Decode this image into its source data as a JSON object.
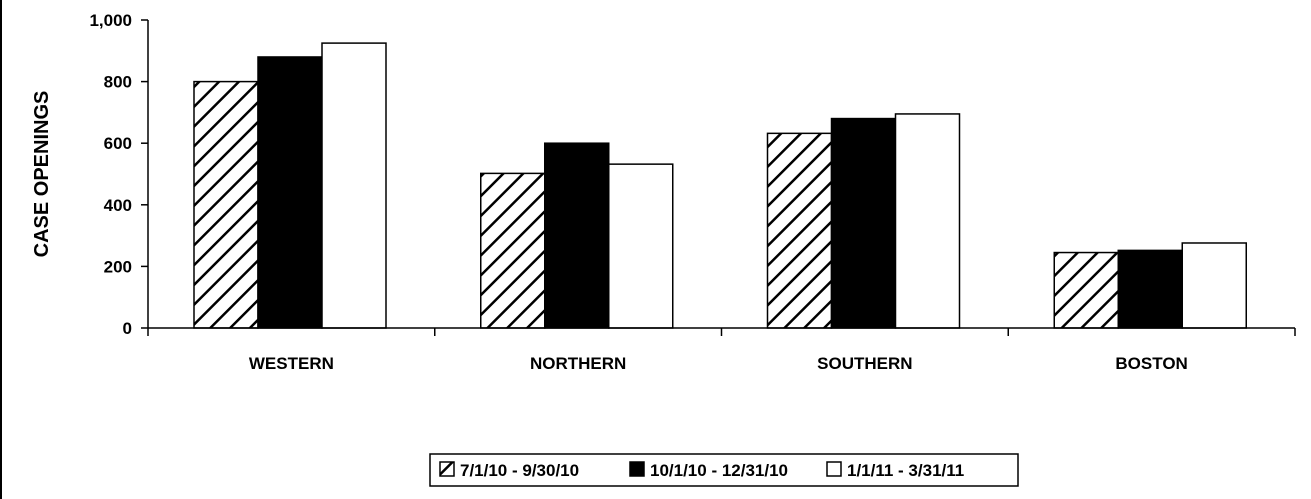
{
  "chart_data": {
    "type": "bar",
    "title": "",
    "xlabel": "",
    "ylabel": "CASE OPENINGS",
    "ylim": [
      0,
      1000
    ],
    "yticks": [
      0,
      200,
      400,
      600,
      800,
      1000
    ],
    "ytick_labels": [
      "0",
      "200",
      "400",
      "600",
      "800",
      "1,000"
    ],
    "categories": [
      "WESTERN",
      "NORTHERN",
      "SOUTHERN",
      "BOSTON"
    ],
    "series": [
      {
        "name": "7/1/10 - 9/30/10",
        "values": [
          800,
          502,
          632,
          245
        ],
        "fill": "hatch"
      },
      {
        "name": "10/1/10 - 12/31/10",
        "values": [
          880,
          600,
          680,
          252
        ],
        "fill": "#000000"
      },
      {
        "name": "1/1/11 - 3/31/11",
        "values": [
          925,
          532,
          695,
          276
        ],
        "fill": "#ffffff"
      }
    ],
    "grid": false,
    "legend_position": "bottom",
    "colors": {
      "bar_border": "#000000",
      "hatch_line": "#000000",
      "background": "#ffffff"
    }
  }
}
